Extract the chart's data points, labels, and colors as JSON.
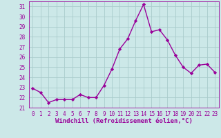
{
  "x": [
    0,
    1,
    2,
    3,
    4,
    5,
    6,
    7,
    8,
    9,
    10,
    11,
    12,
    13,
    14,
    15,
    16,
    17,
    18,
    19,
    20,
    21,
    22,
    23
  ],
  "y": [
    22.9,
    22.5,
    21.5,
    21.8,
    21.8,
    21.8,
    22.3,
    22.0,
    22.0,
    23.2,
    24.8,
    26.8,
    27.8,
    29.6,
    31.2,
    28.5,
    28.7,
    27.7,
    26.2,
    25.0,
    24.4,
    25.2,
    25.3,
    24.5
  ],
  "line_color": "#990099",
  "marker": "D",
  "marker_size": 2.2,
  "bg_color": "#cce8e8",
  "grid_color": "#aacccc",
  "xlabel": "Windchill (Refroidissement éolien,°C)",
  "xlabel_color": "#990099",
  "tick_color": "#990099",
  "ylim": [
    21,
    31.5
  ],
  "yticks": [
    21,
    22,
    23,
    24,
    25,
    26,
    27,
    28,
    29,
    30,
    31
  ],
  "xlim": [
    -0.5,
    23.5
  ],
  "line_width": 1.0,
  "tick_fontsize": 5.5,
  "xlabel_fontsize": 6.5
}
